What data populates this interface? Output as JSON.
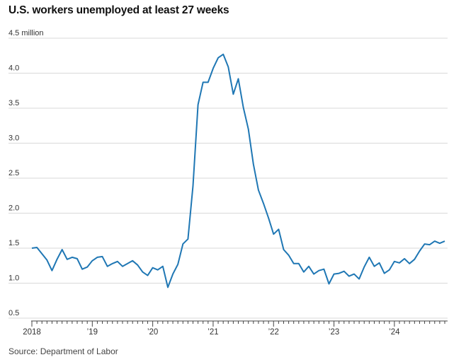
{
  "chart_data": {
    "type": "line",
    "title": "U.S. workers unemployed at least 27 weeks",
    "source": "Source: Department of Labor",
    "xlabel": "",
    "ylabel": "",
    "y_unit": "million",
    "ylim": [
      0.5,
      4.5
    ],
    "y_ticks": [
      {
        "value": 4.5,
        "label": "4.5 million"
      },
      {
        "value": 4.0,
        "label": "4.0"
      },
      {
        "value": 3.5,
        "label": "3.5"
      },
      {
        "value": 3.0,
        "label": "3.0"
      },
      {
        "value": 2.5,
        "label": "2.5"
      },
      {
        "value": 2.0,
        "label": "2.0"
      },
      {
        "value": 1.5,
        "label": "1.5"
      },
      {
        "value": 1.0,
        "label": "1.0"
      },
      {
        "value": 0.5,
        "label": "0.5"
      }
    ],
    "x_ticks": [
      {
        "value": "2018-01",
        "label": "2018"
      },
      {
        "value": "2019-01",
        "label": "’19"
      },
      {
        "value": "2020-01",
        "label": "’20"
      },
      {
        "value": "2021-01",
        "label": "’21"
      },
      {
        "value": "2022-01",
        "label": "’22"
      },
      {
        "value": "2023-01",
        "label": "’23"
      },
      {
        "value": "2024-01",
        "label": "’24"
      }
    ],
    "grid": "horizontal",
    "line_color": "#1f77b4",
    "series": [
      {
        "x": [
          "2018-01",
          "2018-02",
          "2018-03",
          "2018-04",
          "2018-05",
          "2018-06",
          "2018-07",
          "2018-08",
          "2018-09",
          "2018-10",
          "2018-11",
          "2018-12",
          "2019-01",
          "2019-02",
          "2019-03",
          "2019-04",
          "2019-05",
          "2019-06",
          "2019-07",
          "2019-08",
          "2019-09",
          "2019-10",
          "2019-11",
          "2019-12",
          "2020-01",
          "2020-02",
          "2020-03",
          "2020-04",
          "2020-05",
          "2020-06",
          "2020-07",
          "2020-08",
          "2020-09",
          "2020-10",
          "2020-11",
          "2020-12",
          "2021-01",
          "2021-02",
          "2021-03",
          "2021-04",
          "2021-05",
          "2021-06",
          "2021-07",
          "2021-08",
          "2021-09",
          "2021-10",
          "2021-11",
          "2021-12",
          "2022-01",
          "2022-02",
          "2022-03",
          "2022-04",
          "2022-05",
          "2022-06",
          "2022-07",
          "2022-08",
          "2022-09",
          "2022-10",
          "2022-11",
          "2022-12",
          "2023-01",
          "2023-02",
          "2023-03",
          "2023-04",
          "2023-05",
          "2023-06",
          "2023-07",
          "2023-08",
          "2023-09",
          "2023-10",
          "2023-11",
          "2023-12",
          "2024-01",
          "2024-02",
          "2024-03",
          "2024-04",
          "2024-05",
          "2024-06",
          "2024-07",
          "2024-08",
          "2024-09",
          "2024-10",
          "2024-11"
        ],
        "values": [
          1.5,
          1.51,
          1.42,
          1.33,
          1.18,
          1.34,
          1.48,
          1.34,
          1.37,
          1.35,
          1.2,
          1.23,
          1.32,
          1.37,
          1.38,
          1.24,
          1.28,
          1.31,
          1.24,
          1.28,
          1.32,
          1.26,
          1.16,
          1.11,
          1.22,
          1.19,
          1.24,
          0.94,
          1.13,
          1.27,
          1.56,
          1.63,
          2.39,
          3.55,
          3.87,
          3.87,
          4.07,
          4.22,
          4.27,
          4.09,
          3.7,
          3.92,
          3.51,
          3.2,
          2.7,
          2.33,
          2.14,
          1.93,
          1.7,
          1.77,
          1.48,
          1.4,
          1.28,
          1.28,
          1.16,
          1.24,
          1.13,
          1.18,
          1.2,
          0.99,
          1.13,
          1.14,
          1.17,
          1.1,
          1.13,
          1.06,
          1.23,
          1.37,
          1.24,
          1.29,
          1.14,
          1.19,
          1.31,
          1.29,
          1.35,
          1.28,
          1.34,
          1.46,
          1.56,
          1.55,
          1.6,
          1.57,
          1.6
        ]
      }
    ]
  }
}
